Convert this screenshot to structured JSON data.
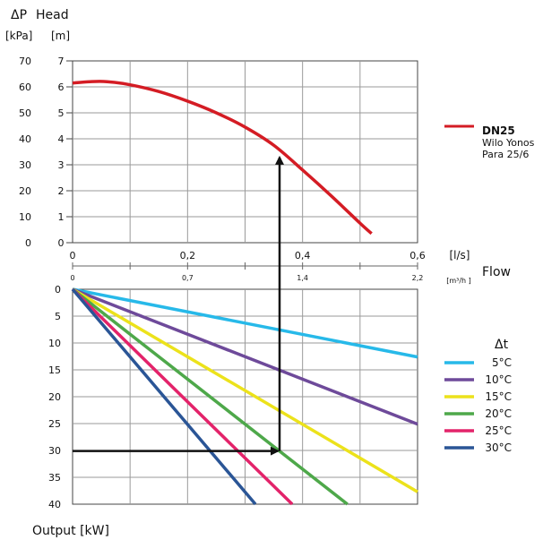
{
  "chart_data": [
    {
      "type": "line",
      "title": "",
      "ylabel_left_title": "ΔP",
      "ylabel_left_unit": "[kPa]",
      "ylabel_right_title": "Head",
      "ylabel_right_unit": "[m]",
      "ylabel_kpa_ticks": [
        "70",
        "60",
        "50",
        "40",
        "30",
        "20",
        "10",
        "0"
      ],
      "ylabel_m_ticks": [
        "7",
        "6",
        "5",
        "4",
        "3",
        "2",
        "1",
        "0"
      ],
      "ylim": [
        0,
        7
      ],
      "xlim": [
        0,
        0.6
      ],
      "x_ticks_ls": [
        "0",
        "0,2",
        "0,4",
        "0,6"
      ],
      "x_unit_ls": "[l/s]",
      "x_ticks_m3h": [
        "0",
        "0,7",
        "1,4",
        "2,2"
      ],
      "x_unit_m3h": "[m³/h ]",
      "x_title": "Flow",
      "series": [
        {
          "name": "DN25",
          "subtitle_1": "Wilo Yonos",
          "subtitle_2": "Para 25/6",
          "color": "#d41c24",
          "x": [
            0,
            0.03,
            0.06,
            0.1,
            0.15,
            0.2,
            0.25,
            0.3,
            0.35,
            0.4,
            0.45,
            0.5,
            0.52
          ],
          "y": [
            6.15,
            6.2,
            6.2,
            6.08,
            5.82,
            5.45,
            5.0,
            4.45,
            3.75,
            2.8,
            1.8,
            0.75,
            0.35
          ]
        }
      ],
      "annotation": {
        "x": 0.36,
        "y": 3.35
      }
    },
    {
      "type": "line",
      "ylabel_ticks": [
        "0",
        "5",
        "10",
        "15",
        "20",
        "25",
        "30",
        "35",
        "40"
      ],
      "ylim": [
        0,
        40
      ],
      "xlim": [
        0,
        0.6
      ],
      "output_label": "Output [kW]",
      "legend_title": "Δt",
      "series": [
        {
          "name": "5°C",
          "color": "#27b9e9",
          "x": [
            0,
            0.6
          ],
          "y": [
            0,
            12.6
          ]
        },
        {
          "name": "10°C",
          "color": "#6e4a9a",
          "x": [
            0,
            0.6
          ],
          "y": [
            0,
            25.1
          ]
        },
        {
          "name": "15°C",
          "color": "#ece21b",
          "x": [
            0,
            0.6
          ],
          "y": [
            0,
            37.7
          ]
        },
        {
          "name": "20°C",
          "color": "#4ea84a",
          "x": [
            0,
            0.478
          ],
          "y": [
            0,
            40
          ]
        },
        {
          "name": "25°C",
          "color": "#e3236a",
          "x": [
            0,
            0.382
          ],
          "y": [
            0,
            40
          ]
        },
        {
          "name": "30°C",
          "color": "#2a5596",
          "x": [
            0,
            0.318
          ],
          "y": [
            0,
            40
          ]
        }
      ],
      "annotation": {
        "x": 0.36,
        "y": 30.1
      }
    }
  ]
}
